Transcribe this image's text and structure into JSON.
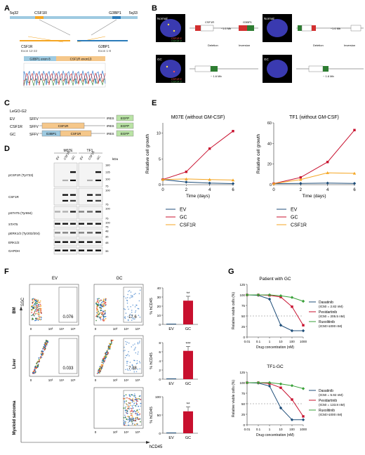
{
  "panels": {
    "A": "A",
    "B": "B",
    "C": "C",
    "D": "D",
    "E": "E",
    "F": "F",
    "G": "G"
  },
  "panelA": {
    "chr_left": "5q32",
    "gene_left": "CSF1R",
    "gene_right": "G3BP1",
    "chr_right": "5q33",
    "frag_left": "CSF1R\nExon 12-22",
    "frag_right": "G3BP1\nExon 1-8",
    "fusion_left": "G3BP1 exon 8",
    "fusion_right": "CSF1R exon13"
  },
  "panelB": {
    "normal_label": "Normal",
    "gc_label": "GC",
    "probe_red": "CSF1R 5'",
    "probe_green": "CSF1R 3'",
    "gene1": "CSF1R",
    "gene2": "G3BP1",
    "dist": "~1.6 Mb",
    "deletion": "Deletion",
    "inversion": "Inversion",
    "dist2": "~ 1.6 Mb"
  },
  "panelC": {
    "vector": "LeGO-G2",
    "rows": [
      {
        "label": "EV",
        "promoter": "SFFV",
        "blocks": [],
        "ires": "IRES",
        "egfp": "EGFP"
      },
      {
        "label": "CSF1R",
        "promoter": "SFFV",
        "blocks": [
          "CSF1R"
        ],
        "ires": "IRES",
        "egfp": "EGFP"
      },
      {
        "label": "GC",
        "promoter": "SFFV",
        "blocks": [
          "G3BP1",
          "CSF1R"
        ],
        "ires": "IRES",
        "egfp": "EGFP"
      }
    ]
  },
  "panelD": {
    "cell_lines": [
      "M07E",
      "TF1"
    ],
    "lanes": [
      "EV",
      "CSF1R",
      "GC",
      "EV",
      "CSF1R",
      "GC"
    ],
    "kda_label": "kDa",
    "rows": [
      {
        "label": "pCSF1R (Tyr723)",
        "markers": [
          "180",
          "135",
          "100",
          "75"
        ]
      },
      {
        "label": "CSF1R",
        "markers": [
          "100",
          "75"
        ]
      },
      {
        "label": "pSTAT5 (Tyr694)",
        "markers": [
          "100",
          "75"
        ]
      },
      {
        "label": "STAT5",
        "markers": [
          "100",
          "75"
        ]
      },
      {
        "label": "pERK1/2 (Tyr202/204)",
        "markers": [
          "48",
          "35"
        ]
      },
      {
        "label": "ERK1/2",
        "markers": [
          "48"
        ]
      },
      {
        "label": "GAPDH",
        "markers": [
          "35"
        ]
      }
    ]
  },
  "chart_data": [
    {
      "type": "line",
      "panel": "E",
      "title": "M07E (without GM-CSF)",
      "xlabel": "Time (days)",
      "ylabel": "Relative cell growth",
      "x": [
        0,
        2,
        4,
        6
      ],
      "xlim": [
        0,
        6
      ],
      "ylim": [
        0,
        12
      ],
      "yticks": [
        0,
        5,
        10
      ],
      "series": [
        {
          "name": "EV",
          "color": "#1f4e79",
          "values": [
            1,
            0.5,
            0.3,
            0.2
          ]
        },
        {
          "name": "GC",
          "color": "#c8102e",
          "values": [
            1,
            2.5,
            7,
            10.4
          ]
        },
        {
          "name": "CSF1R",
          "color": "#f5a623",
          "values": [
            1,
            1.1,
            1.0,
            0.9
          ]
        }
      ]
    },
    {
      "type": "line",
      "panel": "E",
      "title": "TF1 (without GM-CSF)",
      "xlabel": "Time (days)",
      "ylabel": "Relative cell growth",
      "x": [
        0,
        2,
        4,
        6
      ],
      "xlim": [
        0,
        6
      ],
      "ylim": [
        0,
        60
      ],
      "yticks": [
        0,
        20,
        40,
        60
      ],
      "series": [
        {
          "name": "EV",
          "color": "#1f4e79",
          "values": [
            1,
            1.2,
            1.5,
            1.2
          ]
        },
        {
          "name": "GC",
          "color": "#c8102e",
          "values": [
            1,
            7,
            22,
            53
          ]
        },
        {
          "name": "CSF1R",
          "color": "#f5a623",
          "values": [
            1,
            5,
            11.5,
            11
          ]
        }
      ]
    },
    {
      "type": "bar",
      "panel": "F",
      "row": "BM",
      "categories": [
        "EV",
        "GC"
      ],
      "values": [
        0,
        26
      ],
      "ylabel": "% hCD45",
      "ylim": [
        0,
        40
      ],
      "yticks": [
        0,
        10,
        20,
        30,
        40
      ],
      "sig": "**"
    },
    {
      "type": "bar",
      "panel": "F",
      "row": "Liver",
      "categories": [
        "EV",
        "GC"
      ],
      "values": [
        0,
        6.2
      ],
      "ylabel": "% hCD45",
      "ylim": [
        0,
        8
      ],
      "yticks": [
        0,
        2,
        4,
        6,
        8
      ],
      "sig": "***"
    },
    {
      "type": "bar",
      "panel": "F",
      "row": "Myeloid sarcoma",
      "categories": [
        "EV",
        "GC"
      ],
      "values": [
        0,
        60
      ],
      "ylabel": "% hCD45",
      "ylim": [
        0,
        100
      ],
      "yticks": [
        0,
        50,
        100
      ],
      "sig": "**"
    },
    {
      "type": "line",
      "panel": "G",
      "title": "Patient with GC",
      "xlabel": "Drug concentration (nM)",
      "ylabel": "Relative viable cells (%)",
      "xscale": "log",
      "xlim": [
        0.01,
        1000
      ],
      "xticks": [
        "0.01",
        "0.1",
        "1",
        "10",
        "100",
        "1000"
      ],
      "ylim": [
        0,
        125
      ],
      "yticks": [
        0,
        25,
        50,
        75,
        100,
        125
      ],
      "x": [
        0.01,
        0.1,
        1,
        10,
        100,
        1000
      ],
      "series": [
        {
          "name": "Dasatinib",
          "legend": "(IC50 = 2.82 nM)",
          "color": "#1f4e79",
          "values": [
            100,
            99,
            90,
            28,
            15,
            15
          ]
        },
        {
          "name": "Pexidartinib",
          "legend": "(IC50 = 205.5 nM)",
          "color": "#c8102e",
          "values": [
            100,
            100,
            99,
            95,
            72,
            28
          ]
        },
        {
          "name": "Ruxolitinib",
          "legend": "(IC50>1000 nM)",
          "color": "#3aa13a",
          "values": [
            100,
            100,
            100,
            98,
            94,
            85
          ]
        }
      ]
    },
    {
      "type": "line",
      "panel": "G",
      "title": "TF1-GC",
      "xlabel": "Drug concentration (nM)",
      "ylabel": "Relative viable cells (%)",
      "xscale": "log",
      "xlim": [
        0.01,
        1000
      ],
      "xticks": [
        "0.01",
        "0.1",
        "1",
        "10",
        "100",
        "1000"
      ],
      "ylim": [
        0,
        125
      ],
      "yticks": [
        0,
        25,
        50,
        75,
        100,
        125
      ],
      "x": [
        0.01,
        0.1,
        1,
        10,
        100,
        1000
      ],
      "series": [
        {
          "name": "Dasatinib",
          "legend": "(IC50 = 5.92 nM)",
          "color": "#1f4e79",
          "values": [
            100,
            99,
            92,
            40,
            12,
            12
          ]
        },
        {
          "name": "Pexidartinib",
          "legend": "(IC50 = 133.8 nM)",
          "color": "#c8102e",
          "values": [
            100,
            100,
            98,
            88,
            60,
            20
          ]
        },
        {
          "name": "Ruxolitinib",
          "legend": "(IC50>1000 nM)",
          "color": "#3aa13a",
          "values": [
            100,
            100,
            100,
            97,
            93,
            86
          ]
        }
      ]
    }
  ],
  "panelF": {
    "col_ev": "EV",
    "col_gc": "GC",
    "row_bm": "BM",
    "row_liver": "Liver",
    "row_ms": "Myeloid sarcoma",
    "ssc": "SSC",
    "hcd45": "hCD45",
    "gates": {
      "bm_ev": "0.076",
      "bm_gc": "17.6",
      "liver_ev": "0.033",
      "liver_gc": "7.38",
      "ms_gc": "75.2"
    },
    "ticks": [
      "0",
      "10³",
      "10⁴",
      "10⁵"
    ]
  }
}
